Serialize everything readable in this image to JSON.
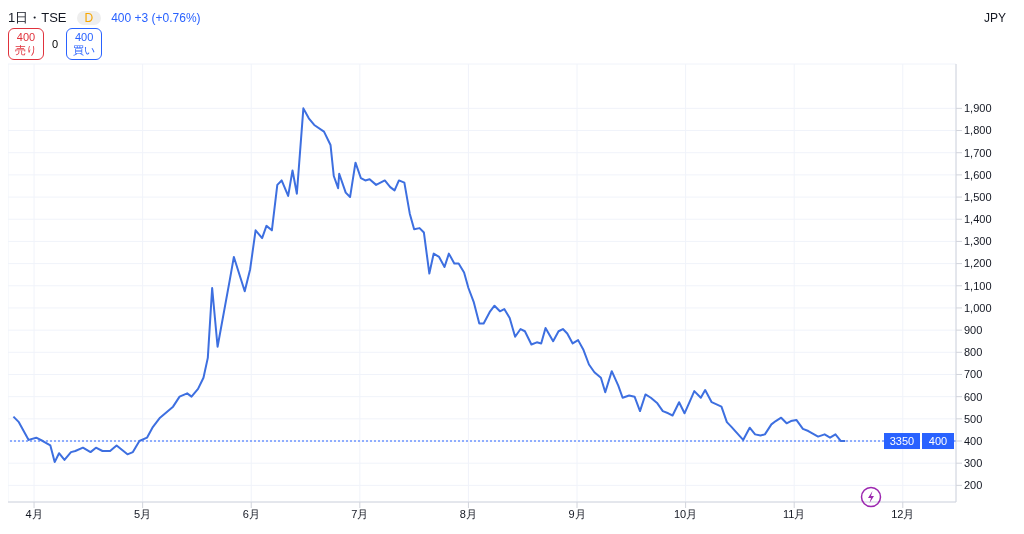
{
  "chart_data": {
    "type": "line",
    "title": "1日・TSE",
    "ylabel": "JPY",
    "annotations": [
      "D",
      "400 +3 (+0.76%)",
      "400",
      "売り",
      "0",
      "400",
      "買い",
      "3350"
    ],
    "x": [
      3.81,
      3.86,
      3.95,
      4.02,
      4.08,
      4.15,
      4.19,
      4.23,
      4.28,
      4.34,
      4.38,
      4.45,
      4.52,
      4.57,
      4.63,
      4.7,
      4.76,
      4.86,
      4.91,
      4.97,
      5.04,
      5.09,
      5.16,
      5.22,
      5.28,
      5.34,
      5.41,
      5.45,
      5.51,
      5.56,
      5.6,
      5.64,
      5.69,
      5.8,
      5.84,
      5.94,
      5.99,
      6.04,
      6.1,
      6.14,
      6.19,
      6.24,
      6.28,
      6.34,
      6.38,
      6.42,
      6.48,
      6.53,
      6.58,
      6.67,
      6.73,
      6.76,
      6.8,
      6.81,
      6.87,
      6.91,
      6.96,
      7.01,
      7.05,
      7.09,
      7.15,
      7.23,
      7.28,
      7.32,
      7.36,
      7.41,
      7.46,
      7.5,
      7.55,
      7.59,
      7.64,
      7.68,
      7.73,
      7.78,
      7.82,
      7.87,
      7.91,
      7.96,
      8.0,
      8.05,
      8.1,
      8.14,
      8.2,
      8.24,
      8.29,
      8.33,
      8.38,
      8.43,
      8.48,
      8.52,
      8.58,
      8.63,
      8.67,
      8.71,
      8.78,
      8.83,
      8.87,
      8.91,
      8.96,
      9.01,
      9.06,
      9.11,
      9.16,
      9.22,
      9.26,
      9.32,
      9.38,
      9.42,
      9.48,
      9.53,
      9.58,
      9.63,
      9.68,
      9.74,
      9.79,
      9.84,
      9.88,
      9.94,
      9.99,
      10.04,
      10.08,
      10.14,
      10.18,
      10.24,
      10.33,
      10.38,
      10.42,
      10.53,
      10.59,
      10.64,
      10.69,
      10.73,
      10.79,
      10.83,
      10.88,
      10.93,
      10.97,
      11.02,
      11.08,
      11.13,
      11.22,
      11.28,
      11.33,
      11.38,
      11.43,
      11.47
    ],
    "series": [
      {
        "color": "#3d6fe0",
        "values": [
          510,
          485,
          405,
          415,
          400,
          380,
          305,
          345,
          315,
          350,
          355,
          370,
          350,
          370,
          355,
          355,
          380,
          340,
          350,
          400,
          415,
          460,
          505,
          530,
          555,
          600,
          615,
          600,
          635,
          685,
          775,
          1090,
          825,
          1120,
          1230,
          1075,
          1175,
          1350,
          1315,
          1370,
          1350,
          1555,
          1575,
          1505,
          1620,
          1515,
          1900,
          1855,
          1825,
          1795,
          1735,
          1595,
          1540,
          1605,
          1520,
          1500,
          1655,
          1585,
          1575,
          1580,
          1555,
          1575,
          1545,
          1530,
          1575,
          1565,
          1425,
          1355,
          1360,
          1340,
          1155,
          1245,
          1230,
          1185,
          1245,
          1200,
          1200,
          1160,
          1090,
          1025,
          930,
          930,
          985,
          1010,
          985,
          995,
          955,
          870,
          905,
          895,
          835,
          845,
          840,
          910,
          850,
          895,
          905,
          885,
          840,
          855,
          810,
          745,
          710,
          685,
          620,
          715,
          650,
          595,
          605,
          600,
          535,
          610,
          595,
          570,
          535,
          525,
          515,
          575,
          525,
          580,
          625,
          595,
          630,
          575,
          555,
          485,
          465,
          405,
          460,
          430,
          425,
          430,
          475,
          490,
          505,
          480,
          490,
          495,
          455,
          445,
          420,
          430,
          415,
          430,
          400,
          400
        ]
      }
    ],
    "xlim": [
      3.76,
      12.49
    ],
    "xticks": [
      {
        "value": 4,
        "label": "4月"
      },
      {
        "value": 5,
        "label": "5月"
      },
      {
        "value": 6,
        "label": "6月"
      },
      {
        "value": 7,
        "label": "7月"
      },
      {
        "value": 8,
        "label": "8月"
      },
      {
        "value": 9,
        "label": "9月"
      },
      {
        "value": 10,
        "label": "10月"
      },
      {
        "value": 11,
        "label": "11月"
      },
      {
        "value": 12,
        "label": "12月"
      }
    ],
    "ylim": [
      125,
      2100
    ],
    "yticks": [
      200,
      300,
      400,
      500,
      600,
      700,
      800,
      900,
      {
        "value": 1000,
        "label": "1,000"
      },
      {
        "value": 1100,
        "label": "1,100"
      },
      {
        "value": 1200,
        "label": "1,200"
      },
      {
        "value": 1300,
        "label": "1,300"
      },
      {
        "value": 1400,
        "label": "1,400"
      },
      {
        "value": 1500,
        "label": "1,500"
      },
      {
        "value": 1600,
        "label": "1,600"
      },
      {
        "value": 1700,
        "label": "1,700"
      },
      {
        "value": 1800,
        "label": "1,800"
      },
      {
        "value": 1900,
        "label": "1,900"
      }
    ],
    "ref_lines": [
      {
        "axis": "y",
        "value": 400,
        "label": "400",
        "color": "#2962ff",
        "line_style": "dotted"
      }
    ],
    "grid": true,
    "marker": "none",
    "line_style": "solid"
  }
}
